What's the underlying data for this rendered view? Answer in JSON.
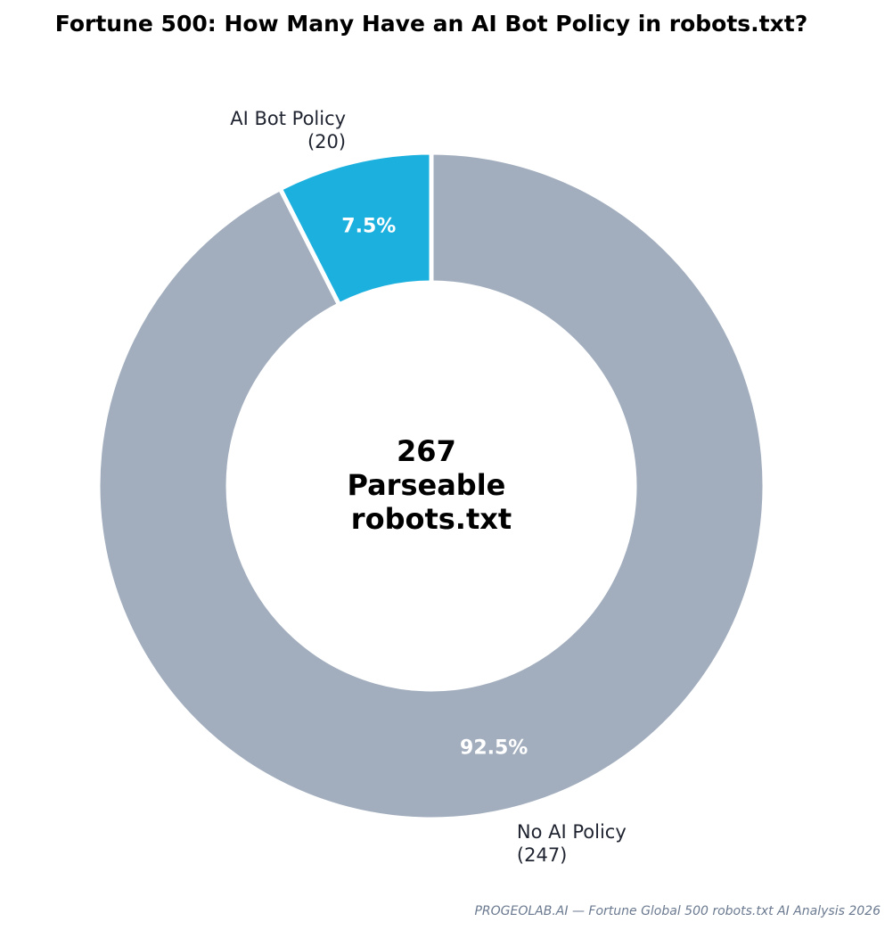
{
  "chart_data": {
    "type": "pie",
    "variant": "donut",
    "title": "Fortune 500: How Many Have an AI Bot Policy in robots.txt?",
    "slices": [
      {
        "name": "No AI Policy",
        "label_line1": "No AI Policy",
        "label_line2": "(247)",
        "value": 247,
        "percent_label": "92.5%",
        "color": "#a2aebe"
      },
      {
        "name": "AI Bot Policy",
        "label_line1": "AI Bot Policy",
        "label_line2": "(20)",
        "value": 20,
        "percent_label": "7.5%",
        "color": "#1cb0de"
      }
    ],
    "total": 267,
    "center_text": [
      "267",
      "Parseable",
      "robots.txt"
    ],
    "start_angle_deg": 90,
    "direction": "clockwise"
  },
  "footer": {
    "source": "PROGEOLAB.AI — Fortune Global 500 robots.txt AI Analysis 2026"
  }
}
